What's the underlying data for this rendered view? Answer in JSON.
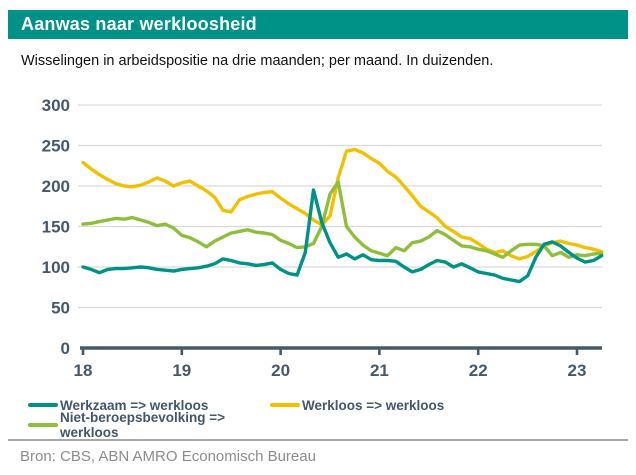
{
  "header": {
    "title": "Aanwas naar werkloosheid"
  },
  "subtitle": "Wisselingen in arbeidspositie na drie maanden; per maand. In duizenden.",
  "colors": {
    "header_bg": "#009286",
    "header_text": "#ffffff",
    "axis": "#46596b",
    "grid": "#d9d9d9",
    "subtitle_text": "#111111",
    "legend_text": "#44576a",
    "divider": "#a8a8a8",
    "footer_text": "#8c8c8c"
  },
  "chart_data": {
    "type": "line",
    "title": "Aanwas naar werkloosheid",
    "subtitle": "Wisselingen in arbeidspositie na drie maanden; per maand. In duizenden.",
    "x_unit": "month",
    "x_start": "2018-01",
    "x_end": "2023-04",
    "x_tick_labels": [
      "18",
      "19",
      "20",
      "21",
      "22",
      "23"
    ],
    "yticks": [
      0,
      50,
      100,
      150,
      200,
      250,
      300
    ],
    "ylim": [
      0,
      300
    ],
    "grid": true,
    "legend_position": "bottom",
    "series": [
      {
        "name": "Werkzaam => werkloos",
        "color": "#009286",
        "values": [
          100,
          97,
          93,
          97,
          98,
          98,
          99,
          100,
          99,
          97,
          96,
          95,
          97,
          98,
          99,
          101,
          104,
          110,
          108,
          105,
          104,
          102,
          103,
          105,
          97,
          92,
          90,
          118,
          195,
          155,
          130,
          112,
          116,
          110,
          115,
          109,
          108,
          108,
          107,
          100,
          94,
          97,
          103,
          108,
          106,
          100,
          104,
          99,
          94,
          92,
          90,
          86,
          84,
          82,
          89,
          112,
          128,
          131,
          126,
          118,
          111,
          106,
          108,
          114
        ]
      },
      {
        "name": "Werkloos => werkloos",
        "color": "#f3c000",
        "values": [
          229,
          221,
          214,
          208,
          203,
          200,
          199,
          201,
          205,
          210,
          206,
          200,
          204,
          206,
          200,
          194,
          186,
          170,
          168,
          183,
          187,
          190,
          192,
          193,
          185,
          178,
          172,
          166,
          158,
          152,
          163,
          210,
          243,
          245,
          241,
          234,
          228,
          218,
          211,
          200,
          188,
          175,
          168,
          161,
          150,
          144,
          137,
          135,
          129,
          122,
          118,
          120,
          114,
          110,
          113,
          119,
          126,
          130,
          132,
          129,
          127,
          124,
          122,
          119
        ]
      },
      {
        "name": "Niet-beroepsbevolking => werkloos",
        "color": "#8fbe3c",
        "values": [
          153,
          154,
          156,
          158,
          160,
          159,
          161,
          158,
          155,
          151,
          153,
          148,
          139,
          136,
          131,
          125,
          132,
          137,
          142,
          144,
          146,
          143,
          142,
          140,
          133,
          129,
          124,
          125,
          129,
          150,
          190,
          205,
          150,
          137,
          127,
          120,
          117,
          114,
          124,
          120,
          130,
          132,
          137,
          145,
          140,
          133,
          126,
          125,
          122,
          120,
          116,
          112,
          120,
          127,
          128,
          128,
          126,
          114,
          118,
          112,
          115,
          114,
          116,
          117
        ]
      }
    ],
    "draw_order": [
      1,
      2,
      0
    ]
  },
  "footer": {
    "source": "Bron: CBS, ABN AMRO Economisch Bureau"
  }
}
